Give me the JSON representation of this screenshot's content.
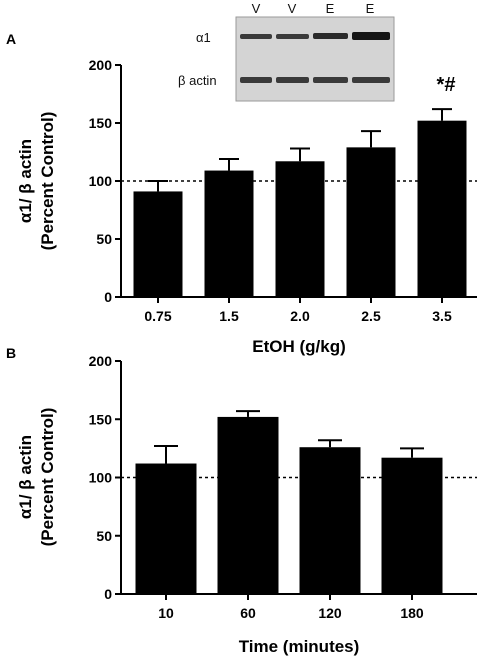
{
  "chart_data": [
    {
      "type": "bar",
      "panel": "A",
      "categories": [
        "0.75",
        "1.5",
        "2.0",
        "2.5",
        "3.5"
      ],
      "values": [
        91,
        109,
        117,
        129,
        152
      ],
      "errors": [
        9,
        10,
        11,
        14,
        10
      ],
      "ylim": [
        0,
        200
      ],
      "yticks": [
        "0",
        "50",
        "100",
        "150",
        "200"
      ],
      "reference_line": 100,
      "ylabel_line1": "α1/ β actin",
      "ylabel_line2": "(Percent Control)",
      "xlabel": "EtOH (g/kg)",
      "annotation": "*#",
      "inset": {
        "lanes": [
          "V",
          "V",
          "E",
          "E"
        ],
        "rows": [
          "α1",
          "β actin"
        ]
      }
    },
    {
      "type": "bar",
      "panel": "B",
      "categories": [
        "10",
        "60",
        "120",
        "180"
      ],
      "values": [
        112,
        152,
        126,
        117
      ],
      "errors": [
        15,
        5,
        6,
        8
      ],
      "ylim": [
        0,
        200
      ],
      "yticks": [
        "0",
        "50",
        "100",
        "150",
        "200"
      ],
      "reference_line": 100,
      "ylabel_line1": "α1/ β actin",
      "ylabel_line2": "(Percent Control)",
      "xlabel": "Time (minutes)"
    }
  ]
}
